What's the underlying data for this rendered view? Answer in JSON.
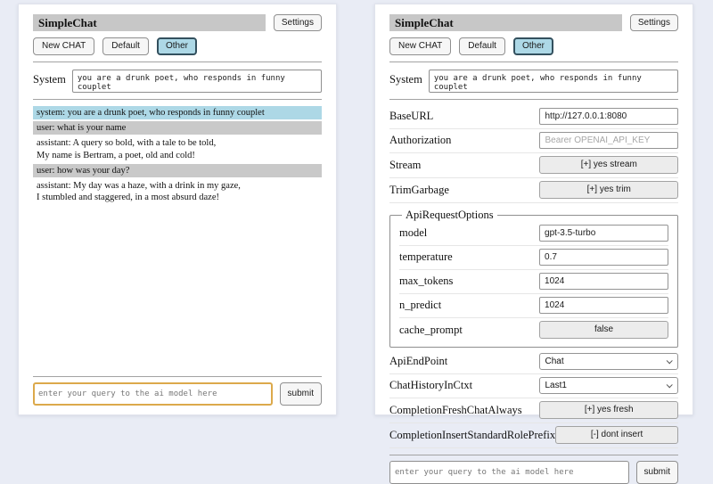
{
  "colors": {
    "page_bg": "#e9ecf5",
    "titlebar_bg": "#c7c7c7",
    "selected_tab_bg": "#add8e6",
    "system_message_bg": "#add8e6",
    "user_message_bg": "#c9c9c9",
    "query_focus_border": "#dca94b"
  },
  "app": {
    "title": "SimpleChat",
    "settings_button": "Settings",
    "toolbar": {
      "new_chat": "New CHAT",
      "default_session": "Default",
      "other_session": "Other"
    },
    "system": {
      "label": "System",
      "prompt": "you are a drunk poet, who responds in funny couplet"
    },
    "query": {
      "placeholder": "enter your query to the ai model here",
      "submit": "submit"
    }
  },
  "chat": {
    "messages": [
      {
        "role": "system",
        "text": "system: you are a drunk poet, who responds in funny couplet"
      },
      {
        "role": "user",
        "text": "user: what is your name"
      },
      {
        "role": "assistant",
        "text": "assistant: A query so bold, with a tale to be told,\nMy name is Bertram, a poet, old and cold!"
      },
      {
        "role": "user",
        "text": "user: how was your day?"
      },
      {
        "role": "assistant",
        "text": "assistant: My day was a haze, with a drink in my gaze,\nI stumbled and staggered, in a most absurd daze!"
      }
    ]
  },
  "settings": {
    "base_url": {
      "label": "BaseURL",
      "value": "http://127.0.0.1:8080"
    },
    "authorization": {
      "label": "Authorization",
      "placeholder": "Bearer OPENAI_API_KEY"
    },
    "stream": {
      "label": "Stream",
      "button": "[+] yes stream"
    },
    "trim_garbage": {
      "label": "TrimGarbage",
      "button": "[+] yes trim"
    },
    "api_request_options": {
      "legend": "ApiRequestOptions",
      "model": {
        "label": "model",
        "value": "gpt-3.5-turbo"
      },
      "temperature": {
        "label": "temperature",
        "value": "0.7"
      },
      "max_tokens": {
        "label": "max_tokens",
        "value": "1024"
      },
      "n_predict": {
        "label": "n_predict",
        "value": "1024"
      },
      "cache_prompt": {
        "label": "cache_prompt",
        "button": "false"
      }
    },
    "api_endpoint": {
      "label": "ApiEndPoint",
      "value": "Chat"
    },
    "chat_history_in_ctxt": {
      "label": "ChatHistoryInCtxt",
      "value": "Last1"
    },
    "completion_fresh_chat_always": {
      "label": "CompletionFreshChatAlways",
      "button": "[+] yes fresh"
    },
    "completion_insert_standard_role_prefix": {
      "label": "CompletionInsertStandardRolePrefix",
      "button": "[-] dont insert"
    }
  }
}
